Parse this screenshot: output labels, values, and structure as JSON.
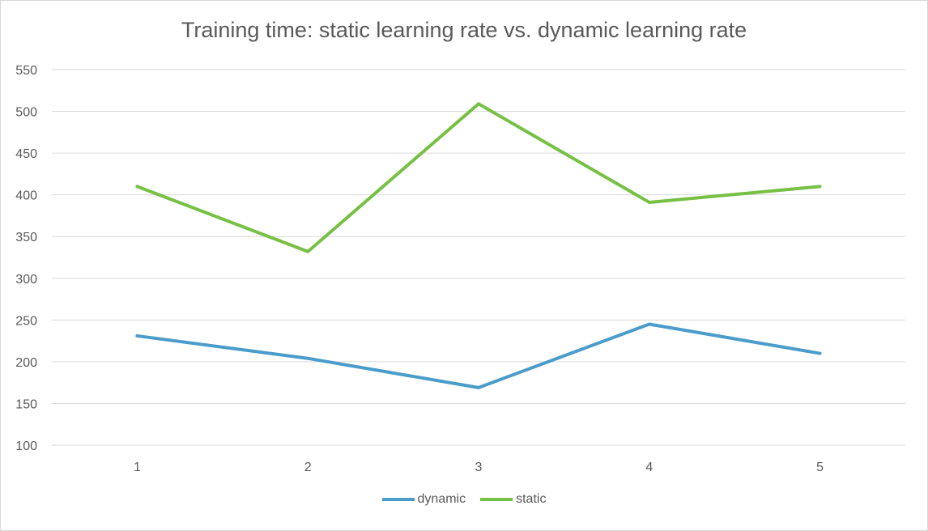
{
  "chart_data": {
    "type": "line",
    "title": "Training time: static learning rate vs. dynamic learning rate",
    "xlabel": "",
    "ylabel": "",
    "categories": [
      "1",
      "2",
      "3",
      "4",
      "5"
    ],
    "ylim": [
      100,
      550
    ],
    "yticks": [
      "550",
      "500",
      "450",
      "400",
      "350",
      "300",
      "250",
      "200",
      "150",
      "100"
    ],
    "grid": true,
    "legend_position": "bottom",
    "series": [
      {
        "name": "dynamic",
        "color": "#4a9ccb",
        "values": [
          231,
          204,
          169,
          245,
          210
        ]
      },
      {
        "name": "static",
        "color": "#76c043",
        "values": [
          410,
          332,
          509,
          391,
          410
        ]
      }
    ]
  }
}
